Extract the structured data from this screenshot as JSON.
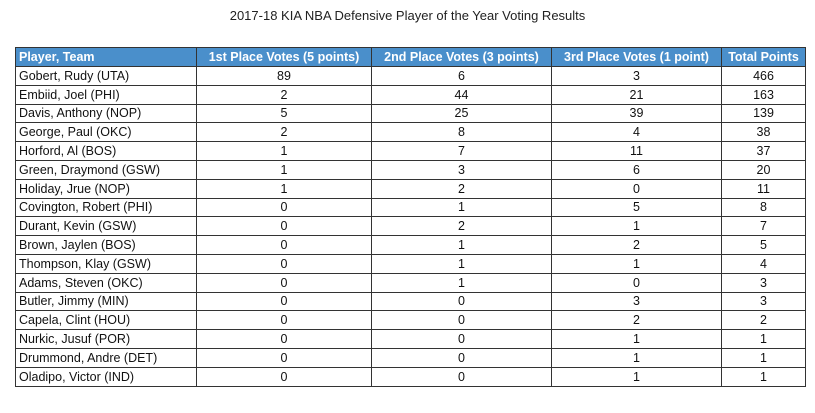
{
  "title": "2017-18 KIA NBA Defensive Player of the Year Voting Results",
  "colors": {
    "header_bg": "#4a8fcb",
    "header_text": "#ffffff"
  },
  "columns": [
    "Player, Team",
    "1st Place Votes (5 points)",
    "2nd Place Votes (3 points)",
    "3rd Place Votes (1 point)",
    "Total Points"
  ],
  "rows": [
    [
      "Gobert, Rudy (UTA)",
      "89",
      "6",
      "3",
      "466"
    ],
    [
      "Embiid, Joel (PHI)",
      "2",
      "44",
      "21",
      "163"
    ],
    [
      "Davis, Anthony (NOP)",
      "5",
      "25",
      "39",
      "139"
    ],
    [
      "George, Paul (OKC)",
      "2",
      "8",
      "4",
      "38"
    ],
    [
      "Horford, Al (BOS)",
      "1",
      "7",
      "11",
      "37"
    ],
    [
      "Green, Draymond (GSW)",
      "1",
      "3",
      "6",
      "20"
    ],
    [
      "Holiday, Jrue (NOP)",
      "1",
      "2",
      "0",
      "11"
    ],
    [
      "Covington, Robert (PHI)",
      "0",
      "1",
      "5",
      "8"
    ],
    [
      "Durant, Kevin (GSW)",
      "0",
      "2",
      "1",
      "7"
    ],
    [
      "Brown, Jaylen (BOS)",
      "0",
      "1",
      "2",
      "5"
    ],
    [
      "Thompson, Klay (GSW)",
      "0",
      "1",
      "1",
      "4"
    ],
    [
      "Adams, Steven (OKC)",
      "0",
      "1",
      "0",
      "3"
    ],
    [
      "Butler, Jimmy (MIN)",
      "0",
      "0",
      "3",
      "3"
    ],
    [
      "Capela, Clint (HOU)",
      "0",
      "0",
      "2",
      "2"
    ],
    [
      "Nurkic, Jusuf (POR)",
      "0",
      "0",
      "1",
      "1"
    ],
    [
      "Drummond, Andre (DET)",
      "0",
      "0",
      "1",
      "1"
    ],
    [
      "Oladipo, Victor (IND)",
      "0",
      "0",
      "1",
      "1"
    ]
  ]
}
